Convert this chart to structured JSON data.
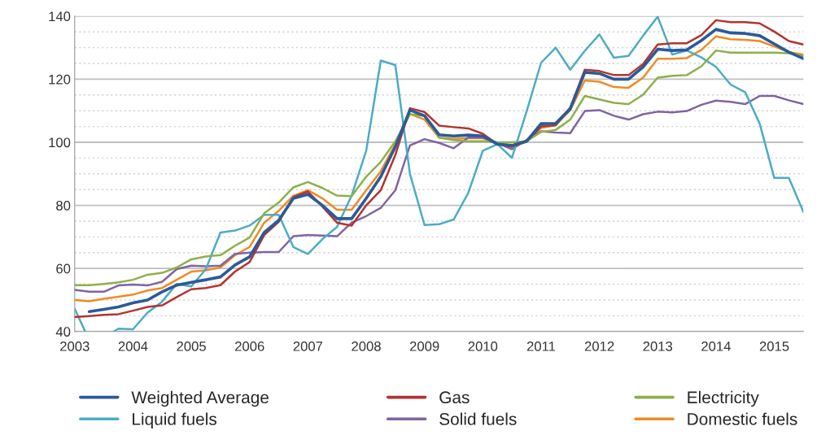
{
  "chart_data": {
    "type": "line",
    "x": [
      2003,
      2003.25,
      2003.5,
      2003.75,
      2004,
      2004.25,
      2004.5,
      2004.75,
      2005,
      2005.25,
      2005.5,
      2005.75,
      2006,
      2006.25,
      2006.5,
      2006.75,
      2007,
      2007.25,
      2007.5,
      2007.75,
      2008,
      2008.25,
      2008.5,
      2008.75,
      2009,
      2009.25,
      2009.5,
      2009.75,
      2010,
      2010.25,
      2010.5,
      2010.75,
      2011,
      2011.25,
      2011.5,
      2011.75,
      2012,
      2012.25,
      2012.5,
      2012.75,
      2013,
      2013.25,
      2013.5,
      2013.75,
      2014,
      2014.25,
      2014.5,
      2014.75,
      2015,
      2015.25,
      2015.5
    ],
    "series": [
      {
        "name": "Weighted Average",
        "color": "#2a5a9a",
        "values": [
          null,
          46.3,
          47,
          47.8,
          49.1,
          50,
          52.6,
          54.7,
          55.6,
          56.4,
          57.3,
          61.1,
          63.7,
          71.4,
          75.3,
          82.2,
          83.5,
          80,
          75.8,
          75.8,
          82.2,
          89.1,
          98.6,
          110.2,
          108.4,
          102.4,
          102,
          102.3,
          102,
          99.4,
          99,
          100.3,
          105.9,
          106,
          110.6,
          122.2,
          121.8,
          120,
          120,
          123.9,
          129.5,
          129.1,
          129.3,
          132.3,
          135.8,
          134.7,
          134.5,
          133.8,
          131.2,
          128.6,
          126.5
        ]
      },
      {
        "name": "Gas",
        "color": "#b5332e",
        "values": [
          44.6,
          44.9,
          45.3,
          45.5,
          46.6,
          47.8,
          48.3,
          50.9,
          53.4,
          53.8,
          54.7,
          59,
          62,
          70.6,
          74.8,
          82.6,
          84.4,
          79.6,
          74.5,
          73.6,
          80,
          84.8,
          96,
          110.8,
          109.6,
          105.3,
          104.8,
          104.4,
          102.7,
          99.4,
          98.6,
          100.3,
          105,
          105.4,
          111,
          123,
          122.6,
          121.3,
          121.3,
          124.8,
          131,
          131.4,
          131.4,
          134,
          138.7,
          138.1,
          138.1,
          137.7,
          135.1,
          132.1,
          131
        ]
      },
      {
        "name": "Electricity",
        "color": "#8db04a",
        "values": [
          54.7,
          54.7,
          55.1,
          55.6,
          56.4,
          58,
          58.6,
          60.3,
          62.9,
          63.8,
          64.2,
          67.2,
          69.8,
          77.5,
          80.9,
          85.7,
          87.4,
          85.5,
          83.1,
          82.9,
          89.1,
          93.8,
          100.3,
          108.9,
          108.4,
          101.5,
          100.7,
          100.3,
          100.3,
          100,
          100,
          100.3,
          103.3,
          103.9,
          107.2,
          114.7,
          113.6,
          112.5,
          112.1,
          115.1,
          120.5,
          121.1,
          121.3,
          124.1,
          129.1,
          128.4,
          128.4,
          128.4,
          128.4,
          128.2,
          127.4
        ]
      },
      {
        "name": "Liquid fuels",
        "color": "#4bacc6",
        "x": [
          2003,
          2003.18,
          2003.5,
          2003.67,
          2003.75,
          2004,
          2004.25,
          2004.5,
          2004.75,
          2005,
          2005.25,
          2005.5,
          2005.75,
          2006,
          2006.25,
          2006.5,
          2006.75,
          2007,
          2007.25,
          2007.5,
          2007.75,
          2008,
          2008.25,
          2008.5,
          2008.75,
          2009,
          2009.25,
          2009.5,
          2009.75,
          2010,
          2010.25,
          2010.5,
          2010.75,
          2011,
          2011.25,
          2011.5,
          2011.75,
          2012,
          2012.25,
          2012.5,
          2012.75,
          2013,
          2013.25,
          2013.5,
          2013.75,
          2014,
          2014.25,
          2014.5,
          2014.75,
          2015,
          2015.25,
          2015.5
        ],
        "values": [
          47.2,
          40,
          null,
          40,
          40.9,
          40.7,
          46,
          49.5,
          55.1,
          54.3,
          59.8,
          71.4,
          72,
          73.6,
          77,
          77,
          66.8,
          64.6,
          69.3,
          73.2,
          83.1,
          97.3,
          125.9,
          124.5,
          90,
          73.8,
          74,
          75.5,
          83.9,
          97.3,
          99.4,
          95.1,
          109.7,
          125.2,
          130,
          123,
          129,
          134.2,
          126.8,
          127.4,
          133.8,
          139.8,
          127.8,
          129.1,
          126.9,
          123.9,
          118.3,
          115.9,
          105.9,
          88.7,
          88.7,
          77.9
        ]
      },
      {
        "name": "Solid fuels",
        "color": "#8064a2",
        "values": [
          53.2,
          52.6,
          52.6,
          54.6,
          54.9,
          54.6,
          55.8,
          59.8,
          60.9,
          60.7,
          60.9,
          64.6,
          65,
          65.2,
          65.2,
          70.2,
          70.6,
          70.4,
          70.2,
          74.5,
          76.6,
          79.2,
          84.8,
          99,
          101,
          99.8,
          98.1,
          101.5,
          101.5,
          99.8,
          97.8,
          100.7,
          103.5,
          103.1,
          102.9,
          109.9,
          110.2,
          108.4,
          107.2,
          108.9,
          109.7,
          109.5,
          109.9,
          111.9,
          113.2,
          112.8,
          112.1,
          114.7,
          114.7,
          113.3,
          112.1
        ]
      },
      {
        "name": "Domestic fuels",
        "color": "#f08a24",
        "values": [
          50,
          49.6,
          50.4,
          51,
          51.7,
          53,
          53.8,
          56.4,
          59,
          59.4,
          60.3,
          64.2,
          66.8,
          74.5,
          78.3,
          83,
          84.8,
          82.2,
          78.6,
          78.6,
          84.8,
          90.8,
          99.4,
          109,
          107.2,
          101.5,
          101.1,
          101.3,
          101.3,
          99.6,
          98.6,
          100.1,
          104.6,
          105.4,
          110.2,
          119.6,
          119.2,
          117.5,
          117.3,
          120.5,
          126.5,
          126.5,
          126.7,
          129.3,
          133.6,
          132.7,
          132.5,
          132.1,
          130.4,
          128.6,
          127.8
        ]
      }
    ],
    "xlim": [
      2003,
      2015.5
    ],
    "xticks": [
      2003,
      2004,
      2005,
      2006,
      2007,
      2008,
      2009,
      2010,
      2011,
      2012,
      2013,
      2014,
      2015
    ],
    "ylim": [
      40,
      140
    ],
    "yticks": [
      40,
      {
        "value": 45,
        "label": null
      },
      {
        "value": 50,
        "label": null
      },
      {
        "value": 55,
        "label": null
      },
      60,
      {
        "value": 65,
        "label": null
      },
      {
        "value": 70,
        "label": null
      },
      {
        "value": 75,
        "label": null
      },
      80,
      {
        "value": 85,
        "label": null
      },
      {
        "value": 90,
        "label": null
      },
      {
        "value": 95,
        "label": null
      },
      100,
      {
        "value": 105,
        "label": null
      },
      {
        "value": 110,
        "label": null
      },
      {
        "value": 115,
        "label": null
      },
      120,
      {
        "value": 125,
        "label": null
      },
      {
        "value": 130,
        "label": null
      },
      {
        "value": 135,
        "label": null
      },
      140
    ],
    "grid": "y",
    "legend": "bottom",
    "line_style": "solid",
    "marker": "none"
  }
}
